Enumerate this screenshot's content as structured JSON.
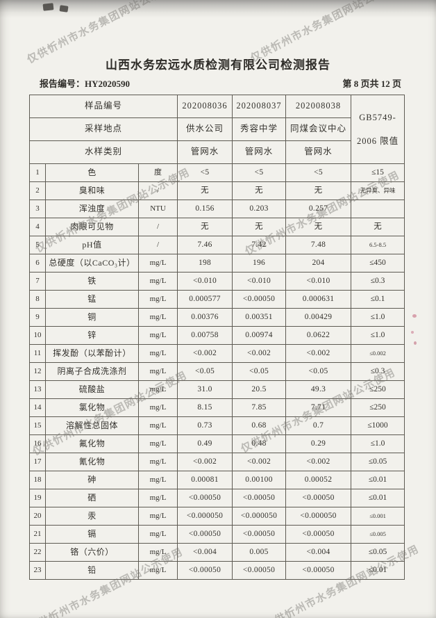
{
  "page": {
    "title": "山西水务宏远水质检测有限公司检测报告",
    "report_no_label": "报告编号：",
    "report_no": "HY2020590",
    "page_indicator": "第 8 页共 12 页"
  },
  "watermark": {
    "text": "仅供忻州市水务集团网站公示使用"
  },
  "colors": {
    "paper": "#f2f1ec",
    "ink": "#33312c",
    "watermark_gray": "#a9a7a3",
    "table_border": "#5d5a52",
    "margin_speck_pink": "#c2607a"
  },
  "table": {
    "header": {
      "sample_no_label": "样品编号",
      "sample_location_label": "采样地点",
      "sample_type_label": "水样类别",
      "sample_nos": [
        "202008036",
        "202008037",
        "202008038"
      ],
      "locations": [
        "供水公司",
        "秀容中学",
        "同煤会议中心"
      ],
      "types": [
        "管网水",
        "管网水",
        "管网水"
      ],
      "limit_header_line1": "GB5749-",
      "limit_header_line2": "2006 限值"
    },
    "rows": [
      {
        "no": "1",
        "item": "色",
        "unit": "度",
        "v1": "<5",
        "v2": "<5",
        "v3": "<5",
        "limit": "≤15"
      },
      {
        "no": "2",
        "item": "臭和味",
        "unit": "/",
        "v1": "无",
        "v2": "无",
        "v3": "无",
        "limit": "无异臭、异味"
      },
      {
        "no": "3",
        "item": "浑浊度",
        "unit": "NTU",
        "v1": "0.156",
        "v2": "0.203",
        "v3": "0.257",
        "limit": ""
      },
      {
        "no": "4",
        "item": "肉眼可见物",
        "unit": "/",
        "v1": "无",
        "v2": "无",
        "v3": "无",
        "limit": "无"
      },
      {
        "no": "5",
        "item": "pH值",
        "unit": "/",
        "v1": "7.46",
        "v2": "7.42",
        "v3": "7.48",
        "limit": "6.5-8.5"
      },
      {
        "no": "6",
        "item": "总硬度（以CaCO₃计）",
        "unit": "mg/L",
        "v1": "198",
        "v2": "196",
        "v3": "204",
        "limit": "≤450"
      },
      {
        "no": "7",
        "item": "铁",
        "unit": "mg/L",
        "v1": "<0.010",
        "v2": "<0.010",
        "v3": "<0.010",
        "limit": "≤0.3"
      },
      {
        "no": "8",
        "item": "锰",
        "unit": "mg/L",
        "v1": "0.000577",
        "v2": "<0.00050",
        "v3": "0.000631",
        "limit": "≤0.1"
      },
      {
        "no": "9",
        "item": "铜",
        "unit": "mg/L",
        "v1": "0.00376",
        "v2": "0.00351",
        "v3": "0.00429",
        "limit": "≤1.0"
      },
      {
        "no": "10",
        "item": "锌",
        "unit": "mg/L",
        "v1": "0.00758",
        "v2": "0.00974",
        "v3": "0.0622",
        "limit": "≤1.0"
      },
      {
        "no": "11",
        "item": "挥发酚（以苯酚计）",
        "unit": "mg/L",
        "v1": "<0.002",
        "v2": "<0.002",
        "v3": "<0.002",
        "limit": "≤0.002"
      },
      {
        "no": "12",
        "item": "阴离子合成洗涤剂",
        "unit": "mg/L",
        "v1": "<0.05",
        "v2": "<0.05",
        "v3": "<0.05",
        "limit": "≤0.3"
      },
      {
        "no": "13",
        "item": "硫酸盐",
        "unit": "mg/L",
        "v1": "31.0",
        "v2": "20.5",
        "v3": "49.3",
        "limit": "≤250"
      },
      {
        "no": "14",
        "item": "氯化物",
        "unit": "mg/L",
        "v1": "8.15",
        "v2": "7.85",
        "v3": "7.71",
        "limit": "≤250"
      },
      {
        "no": "15",
        "item": "溶解性总固体",
        "unit": "mg/L",
        "v1": "0.73",
        "v2": "0.68",
        "v3": "0.7",
        "limit": "≤1000"
      },
      {
        "no": "16",
        "item": "氟化物",
        "unit": "mg/L",
        "v1": "0.49",
        "v2": "0.48",
        "v3": "0.29",
        "limit": "≤1.0"
      },
      {
        "no": "17",
        "item": "氰化物",
        "unit": "mg/L",
        "v1": "<0.002",
        "v2": "<0.002",
        "v3": "<0.002",
        "limit": "≤0.05"
      },
      {
        "no": "18",
        "item": "砷",
        "unit": "mg/L",
        "v1": "0.00081",
        "v2": "0.00100",
        "v3": "0.00052",
        "limit": "≤0.01"
      },
      {
        "no": "19",
        "item": "硒",
        "unit": "mg/L",
        "v1": "<0.00050",
        "v2": "<0.00050",
        "v3": "<0.00050",
        "limit": "≤0.01"
      },
      {
        "no": "20",
        "item": "汞",
        "unit": "mg/L",
        "v1": "<0.000050",
        "v2": "<0.000050",
        "v3": "<0.000050",
        "limit": "≤0.001"
      },
      {
        "no": "21",
        "item": "镉",
        "unit": "mg/L",
        "v1": "<0.00050",
        "v2": "<0.00050",
        "v3": "<0.00050",
        "limit": "≤0.005"
      },
      {
        "no": "22",
        "item": "铬（六价）",
        "unit": "mg/L",
        "v1": "<0.004",
        "v2": "0.005",
        "v3": "<0.004",
        "limit": "≤0.05"
      },
      {
        "no": "23",
        "item": "铅",
        "unit": "mg/L",
        "v1": "<0.00050",
        "v2": "<0.00050",
        "v3": "<0.00050",
        "limit": "≤0.01"
      }
    ]
  }
}
